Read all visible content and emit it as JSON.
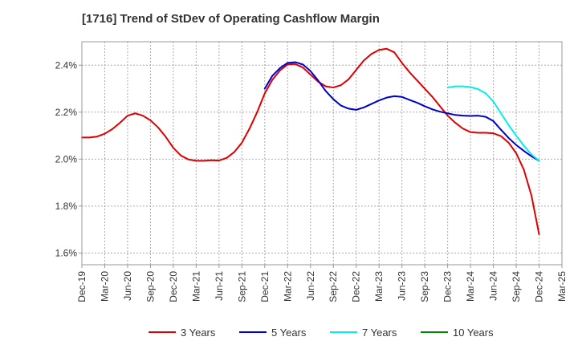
{
  "chart_data": {
    "type": "line",
    "title": "[1716]  Trend of StDev of Operating Cashflow Margin",
    "xlabel": "",
    "ylabel": "",
    "x_ticks": [
      "Dec-19",
      "Mar-20",
      "Jun-20",
      "Sep-20",
      "Dec-20",
      "Mar-21",
      "Jun-21",
      "Sep-21",
      "Dec-21",
      "Mar-22",
      "Jun-22",
      "Sep-22",
      "Dec-22",
      "Mar-23",
      "Jun-23",
      "Sep-23",
      "Dec-23",
      "Mar-24",
      "Jun-24",
      "Sep-24",
      "Dec-24",
      "Mar-25"
    ],
    "ylim": [
      1.55,
      2.5
    ],
    "y_ticks": [
      1.6,
      1.8,
      2.0,
      2.2,
      2.4
    ],
    "y_tick_labels": [
      "1.6%",
      "1.8%",
      "2.0%",
      "2.2%",
      "2.4%"
    ],
    "grid": true,
    "legend_position": "bottom",
    "series": [
      {
        "name": "3 Years",
        "color": "#dd0000",
        "values": [
          [
            0,
            2.092
          ],
          [
            1,
            2.092
          ],
          [
            2,
            2.096
          ],
          [
            3,
            2.108
          ],
          [
            4,
            2.128
          ],
          [
            5,
            2.155
          ],
          [
            6,
            2.185
          ],
          [
            7,
            2.195
          ],
          [
            8,
            2.185
          ],
          [
            9,
            2.165
          ],
          [
            10,
            2.135
          ],
          [
            11,
            2.095
          ],
          [
            12,
            2.048
          ],
          [
            13,
            2.015
          ],
          [
            14,
            1.998
          ],
          [
            15,
            1.993
          ],
          [
            16,
            1.993
          ],
          [
            17,
            1.995
          ],
          [
            18,
            1.994
          ],
          [
            19,
            2.005
          ],
          [
            20,
            2.03
          ],
          [
            21,
            2.07
          ],
          [
            22,
            2.13
          ],
          [
            23,
            2.2
          ],
          [
            24,
            2.28
          ],
          [
            25,
            2.338
          ],
          [
            26,
            2.378
          ],
          [
            27,
            2.403
          ],
          [
            28,
            2.405
          ],
          [
            29,
            2.39
          ],
          [
            30,
            2.36
          ],
          [
            31,
            2.33
          ],
          [
            32,
            2.31
          ],
          [
            33,
            2.305
          ],
          [
            34,
            2.315
          ],
          [
            35,
            2.34
          ],
          [
            36,
            2.38
          ],
          [
            37,
            2.42
          ],
          [
            38,
            2.448
          ],
          [
            39,
            2.465
          ],
          [
            40,
            2.47
          ],
          [
            41,
            2.455
          ],
          [
            42,
            2.41
          ],
          [
            43,
            2.37
          ],
          [
            44,
            2.335
          ],
          [
            45,
            2.3
          ],
          [
            46,
            2.265
          ],
          [
            47,
            2.225
          ],
          [
            48,
            2.185
          ],
          [
            49,
            2.155
          ],
          [
            50,
            2.13
          ],
          [
            51,
            2.115
          ],
          [
            52,
            2.112
          ],
          [
            53,
            2.112
          ],
          [
            54,
            2.11
          ],
          [
            55,
            2.098
          ],
          [
            56,
            2.07
          ],
          [
            57,
            2.025
          ],
          [
            58,
            1.955
          ],
          [
            59,
            1.845
          ],
          [
            60,
            1.68
          ]
        ]
      },
      {
        "name": "5 Years",
        "color": "#0000cc",
        "values": [
          [
            24,
            2.3
          ],
          [
            25,
            2.355
          ],
          [
            26,
            2.388
          ],
          [
            27,
            2.41
          ],
          [
            28,
            2.413
          ],
          [
            29,
            2.403
          ],
          [
            30,
            2.375
          ],
          [
            31,
            2.335
          ],
          [
            32,
            2.29
          ],
          [
            33,
            2.255
          ],
          [
            34,
            2.228
          ],
          [
            35,
            2.215
          ],
          [
            36,
            2.21
          ],
          [
            37,
            2.22
          ],
          [
            38,
            2.235
          ],
          [
            39,
            2.25
          ],
          [
            40,
            2.262
          ],
          [
            41,
            2.268
          ],
          [
            42,
            2.265
          ],
          [
            43,
            2.252
          ],
          [
            44,
            2.24
          ],
          [
            45,
            2.225
          ],
          [
            46,
            2.212
          ],
          [
            47,
            2.202
          ],
          [
            48,
            2.195
          ],
          [
            49,
            2.188
          ],
          [
            50,
            2.185
          ],
          [
            51,
            2.184
          ],
          [
            52,
            2.185
          ],
          [
            53,
            2.18
          ],
          [
            54,
            2.162
          ],
          [
            55,
            2.125
          ],
          [
            56,
            2.09
          ],
          [
            57,
            2.06
          ],
          [
            58,
            2.035
          ],
          [
            59,
            2.012
          ],
          [
            60,
            1.993
          ]
        ]
      },
      {
        "name": "7 Years",
        "color": "#00eeee",
        "values": [
          [
            48,
            2.305
          ],
          [
            49,
            2.31
          ],
          [
            50,
            2.31
          ],
          [
            51,
            2.307
          ],
          [
            52,
            2.298
          ],
          [
            53,
            2.28
          ],
          [
            54,
            2.245
          ],
          [
            55,
            2.195
          ],
          [
            56,
            2.145
          ],
          [
            57,
            2.1
          ],
          [
            58,
            2.057
          ],
          [
            59,
            2.02
          ],
          [
            60,
            1.993
          ]
        ]
      },
      {
        "name": "10 Years",
        "color": "#008800",
        "values": []
      }
    ]
  }
}
